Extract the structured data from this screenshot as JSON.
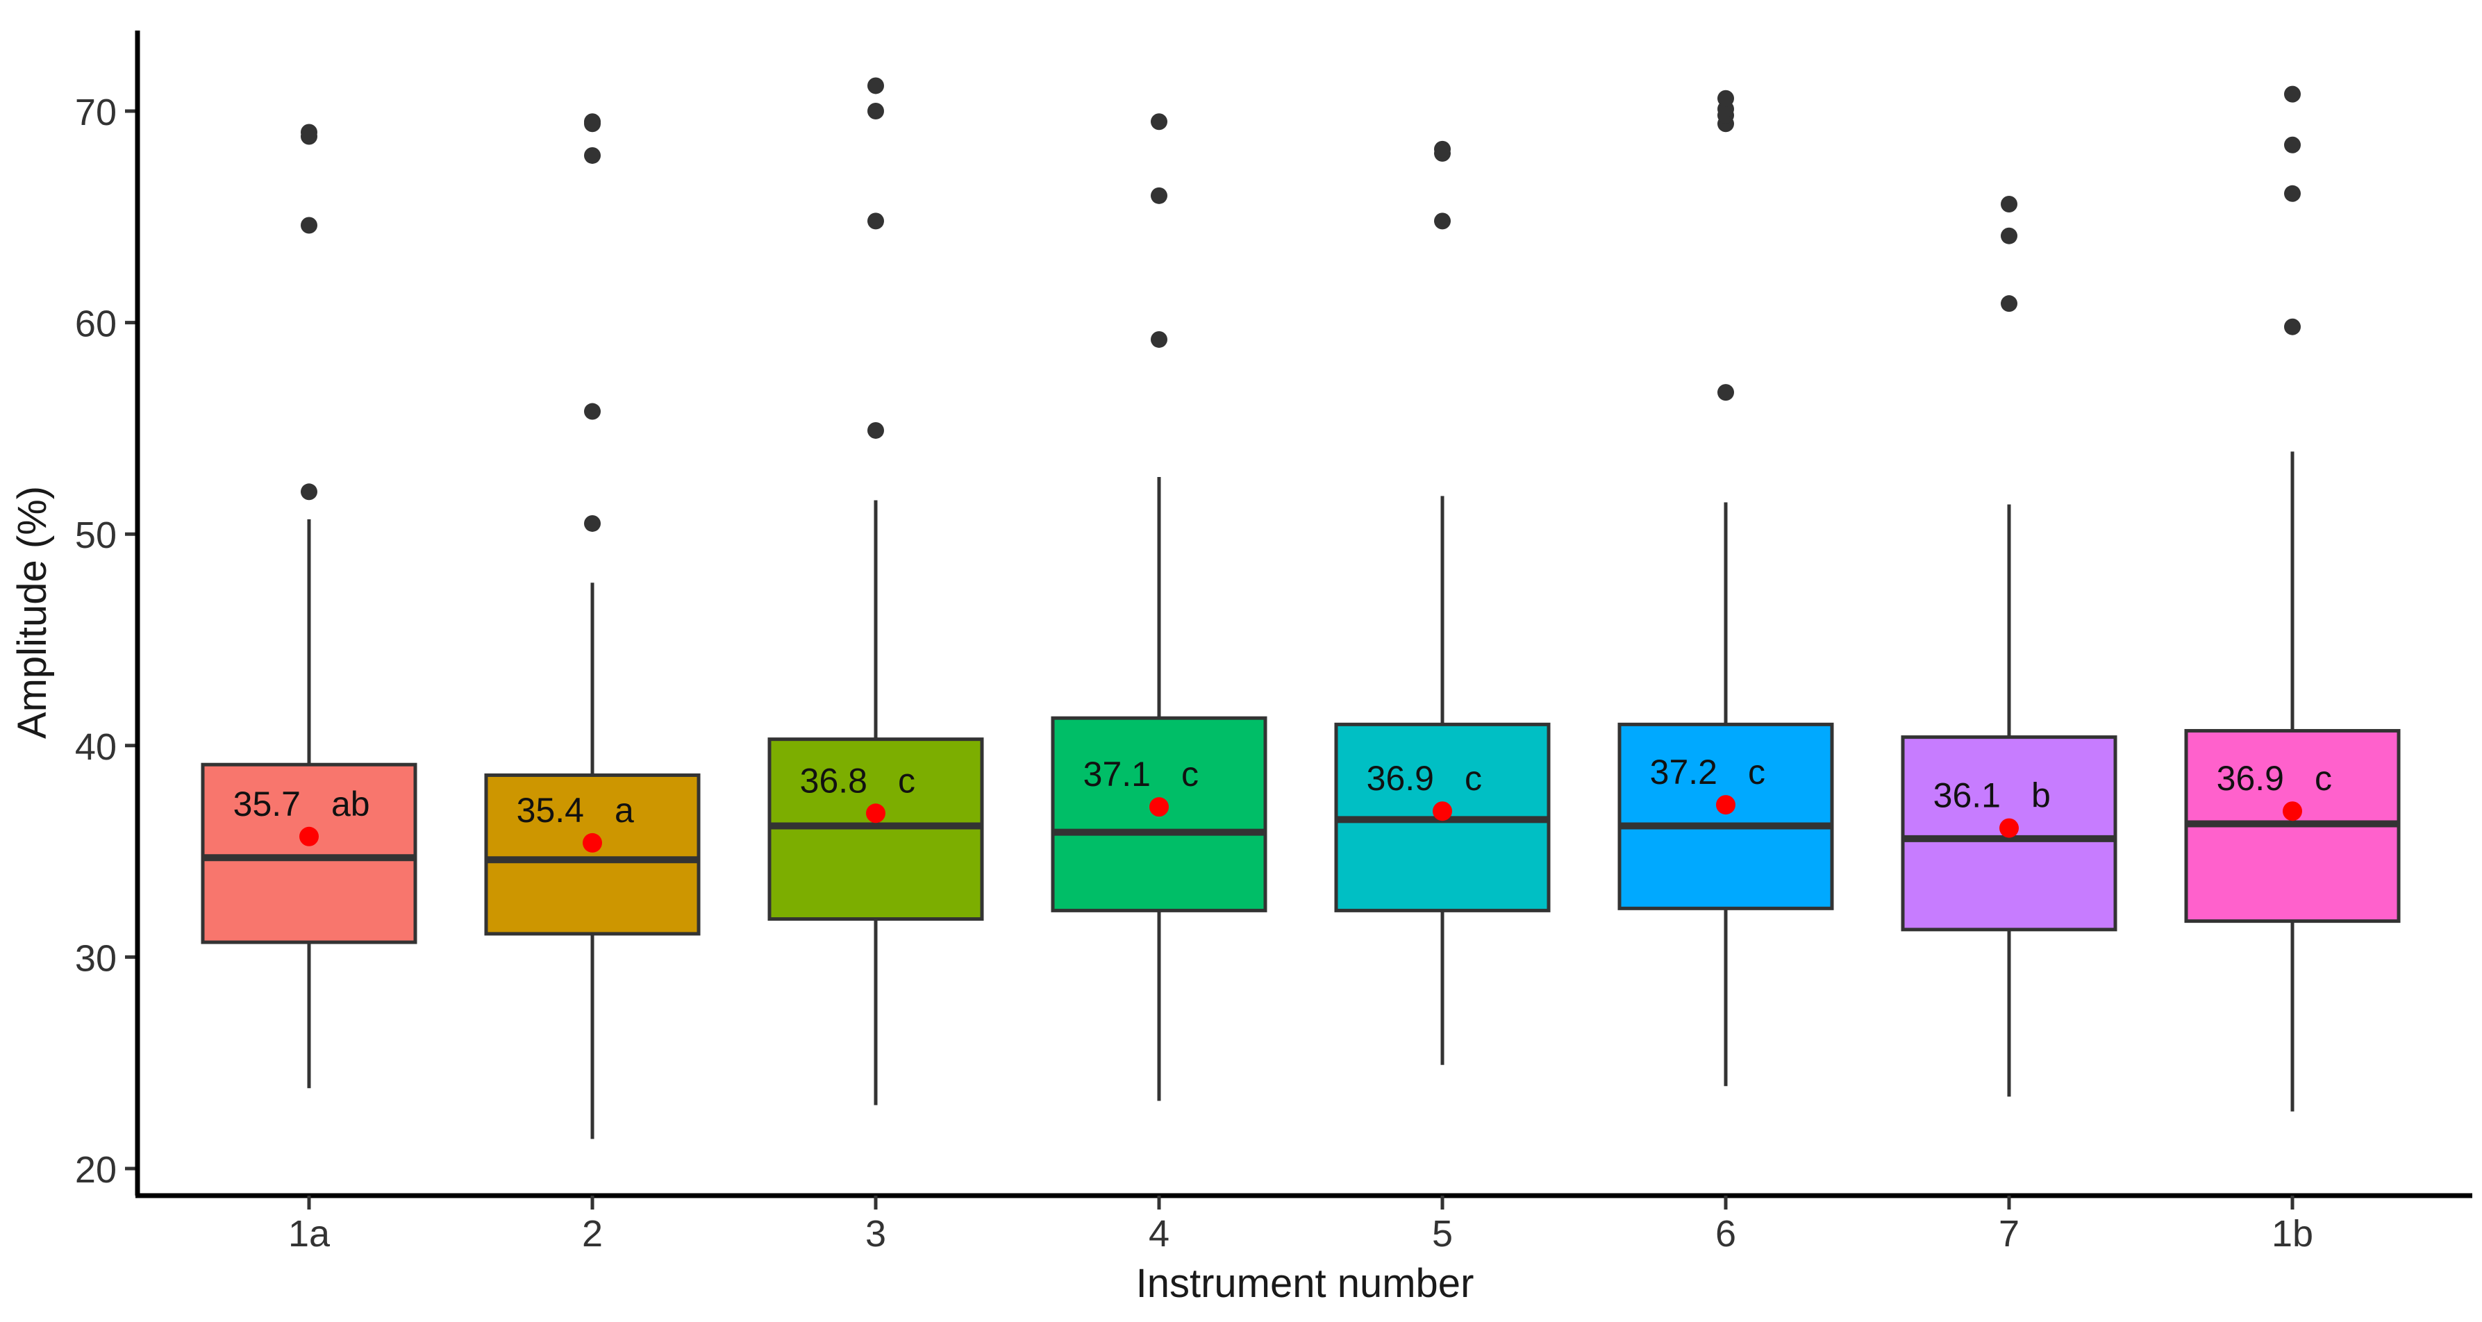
{
  "chart_data": {
    "type": "boxplot",
    "title": "",
    "xlabel": "Instrument number",
    "ylabel": "Amplitude (%)",
    "ylim": [
      19,
      74
    ],
    "yticks": [
      20,
      30,
      40,
      50,
      60,
      70
    ],
    "grid": false,
    "legend": "none",
    "mean_marker_color": "#ff0000",
    "outlier_color": "#333333",
    "categories": [
      "1a",
      "2",
      "3",
      "4",
      "5",
      "6",
      "7",
      "1b"
    ],
    "boxes": [
      {
        "category": "1a",
        "color": "#F8766D",
        "whisker_low": 23.8,
        "q1": 30.7,
        "median": 34.7,
        "q3": 39.1,
        "whisker_high": 50.7,
        "mean": 35.7,
        "mean_label": "35.7",
        "group": "ab",
        "outliers": [
          52.0,
          64.6,
          68.8,
          69.0
        ]
      },
      {
        "category": "2",
        "color": "#CD9600",
        "whisker_low": 21.4,
        "q1": 31.1,
        "median": 34.6,
        "q3": 38.6,
        "whisker_high": 47.7,
        "mean": 35.4,
        "mean_label": "35.4",
        "group": "a",
        "outliers": [
          50.5,
          55.8,
          67.9,
          69.4,
          69.5
        ]
      },
      {
        "category": "3",
        "color": "#7CAE00",
        "whisker_low": 23.0,
        "q1": 31.8,
        "median": 36.2,
        "q3": 40.3,
        "whisker_high": 51.6,
        "mean": 36.8,
        "mean_label": "36.8",
        "group": "c",
        "outliers": [
          54.9,
          64.8,
          70.0,
          71.2
        ]
      },
      {
        "category": "4",
        "color": "#00BE67",
        "whisker_low": 23.2,
        "q1": 32.2,
        "median": 35.9,
        "q3": 41.3,
        "whisker_high": 52.7,
        "mean": 37.1,
        "mean_label": "37.1",
        "group": "c",
        "outliers": [
          59.2,
          66.0,
          69.5
        ]
      },
      {
        "category": "5",
        "color": "#00BFC4",
        "whisker_low": 24.9,
        "q1": 32.2,
        "median": 36.5,
        "q3": 41.0,
        "whisker_high": 51.8,
        "mean": 36.9,
        "mean_label": "36.9",
        "group": "c",
        "outliers": [
          64.8,
          68.0,
          68.2
        ]
      },
      {
        "category": "6",
        "color": "#00A9FF",
        "whisker_low": 23.9,
        "q1": 32.3,
        "median": 36.2,
        "q3": 41.0,
        "whisker_high": 51.5,
        "mean": 37.2,
        "mean_label": "37.2",
        "group": "c",
        "outliers": [
          56.7,
          69.4,
          69.8,
          70.1,
          70.6
        ]
      },
      {
        "category": "7",
        "color": "#C77CFF",
        "whisker_low": 23.4,
        "q1": 31.3,
        "median": 35.6,
        "q3": 40.4,
        "whisker_high": 51.4,
        "mean": 36.1,
        "mean_label": "36.1",
        "group": "b",
        "outliers": [
          60.9,
          64.1,
          65.6
        ]
      },
      {
        "category": "1b",
        "color": "#FF61CC",
        "whisker_low": 22.7,
        "q1": 31.7,
        "median": 36.3,
        "q3": 40.7,
        "whisker_high": 53.9,
        "mean": 36.9,
        "mean_label": "36.9",
        "group": "c",
        "outliers": [
          59.8,
          66.1,
          68.4,
          70.8
        ]
      }
    ]
  }
}
